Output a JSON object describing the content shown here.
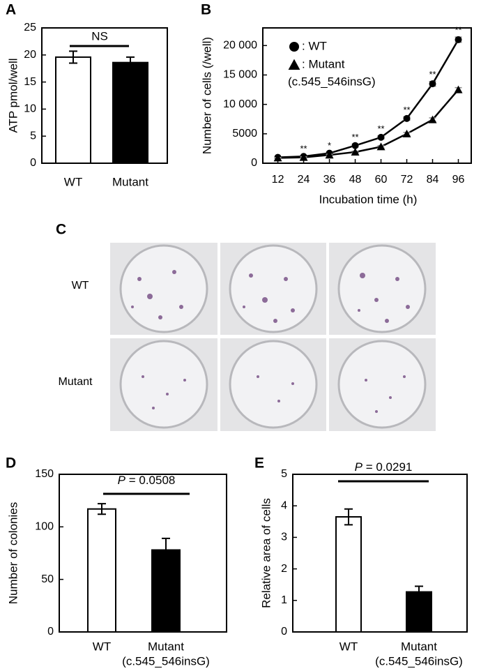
{
  "chart_data": [
    {
      "type": "bar",
      "panel_label": "A",
      "ylabel": "ATP pmol/well",
      "categories": [
        "WT",
        "Mutant"
      ],
      "values": [
        19.6,
        18.6
      ],
      "errors": [
        1.1,
        1.0
      ],
      "colors": [
        "#ffffff",
        "#000000"
      ],
      "ylim": [
        0,
        25
      ],
      "yticks": [
        0,
        5,
        10,
        15,
        20,
        25
      ],
      "annotation": "NS"
    },
    {
      "type": "line",
      "panel_label": "B",
      "ylabel": "Number of cells (/well)",
      "xlabel": "Incubation time (h)",
      "x": [
        12,
        24,
        36,
        48,
        60,
        72,
        84,
        96
      ],
      "xlim": [
        5,
        102
      ],
      "ylim": [
        0,
        23000
      ],
      "yticks": [
        0,
        5000,
        {
          "value": 10000,
          "label": "10 000"
        },
        {
          "value": 15000,
          "label": "15 000"
        },
        {
          "value": 20000,
          "label": "20 000"
        }
      ],
      "series": [
        {
          "name": ": WT",
          "marker": "circle",
          "color": "#000000",
          "values": [
            1000,
            1150,
            1700,
            3000,
            4400,
            7600,
            13500,
            21000
          ],
          "errors": [
            100,
            120,
            150,
            250,
            250,
            300,
            400,
            450
          ]
        },
        {
          "name": ": Mutant",
          "note": "(c.545_546insG)",
          "marker": "triangle",
          "color": "#000000",
          "values": [
            900,
            1000,
            1400,
            1900,
            2800,
            5000,
            7400,
            12500
          ],
          "errors": [
            80,
            100,
            120,
            150,
            200,
            250,
            300,
            350
          ]
        }
      ],
      "significance": [
        null,
        "**",
        "*",
        "**",
        "**",
        "**",
        "**",
        "**"
      ]
    },
    {
      "type": "bar",
      "panel_label": "D",
      "ylabel": "Number of colonies",
      "categories": [
        "WT",
        "Mutant"
      ],
      "category_notes": [
        null,
        "(c.545_546insG)"
      ],
      "values": [
        117,
        78
      ],
      "errors": [
        5,
        11
      ],
      "colors": [
        "#ffffff",
        "#000000"
      ],
      "ylim": [
        0,
        150
      ],
      "yticks": [
        0,
        50,
        100,
        150
      ],
      "p_symbol": "P",
      "p_text": " = 0.0508"
    },
    {
      "type": "bar",
      "panel_label": "E",
      "ylabel": "Relative area of cells",
      "categories": [
        "WT",
        "Mutant"
      ],
      "category_notes": [
        null,
        "(c.545_546insG)"
      ],
      "values": [
        3.65,
        1.27
      ],
      "errors": [
        0.25,
        0.18
      ],
      "colors": [
        "#ffffff",
        "#000000"
      ],
      "ylim": [
        0,
        5
      ],
      "yticks": [
        0,
        1,
        2,
        3,
        4,
        5
      ],
      "p_symbol": "P",
      "p_text": " = 0.0291"
    }
  ],
  "photo_panel": {
    "label": "C",
    "rows": [
      "WT",
      "Mutant"
    ]
  }
}
